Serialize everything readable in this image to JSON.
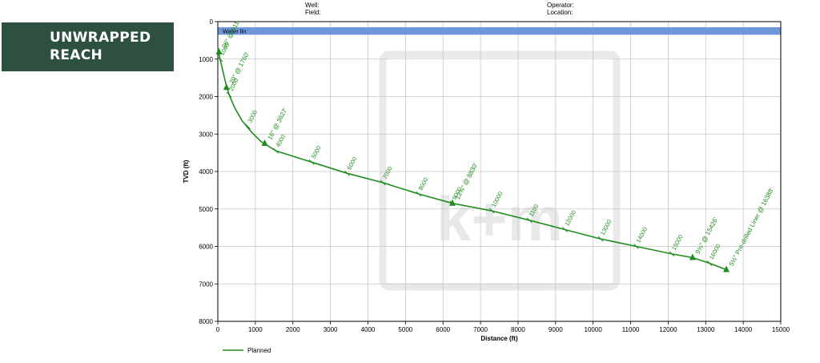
{
  "banner": {
    "line1": "UNWRAPPED",
    "line2": "REACH"
  },
  "header": {
    "well": "Well:",
    "field": "Field:",
    "operator": "Operator:",
    "location": "Location:"
  },
  "colors": {
    "trajectory": "#1e8c1e",
    "water": "#6f96d9",
    "banner_bg": "#2d5040",
    "grid": "#c8c8c8"
  },
  "chart_data": {
    "type": "line",
    "title": "",
    "xlabel": "Distance (ft)",
    "ylabel": "TVD (ft)",
    "xlim": [
      0,
      15000
    ],
    "ylim": [
      0,
      8000
    ],
    "y_inverted": true,
    "grid": true,
    "xticks": [
      0,
      1000,
      2000,
      3000,
      4000,
      5000,
      6000,
      7000,
      8000,
      9000,
      10000,
      11000,
      12000,
      13000,
      14000,
      15000
    ],
    "yticks": [
      0,
      1000,
      2000,
      3000,
      4000,
      5000,
      6000,
      7000,
      8000
    ],
    "xtick_labels": [
      "0",
      "1000",
      "2000",
      "3000",
      "4000",
      "5000",
      "6000",
      "7000",
      "8000",
      "9000",
      "10000",
      "11000",
      "12000",
      "13000",
      "14000",
      "15000"
    ],
    "ytick_labels": [
      "0",
      "1000",
      "2000",
      "3000",
      "4000",
      "5000",
      "6000",
      "7000",
      "8000"
    ],
    "water_line": {
      "label": "Water lin",
      "depth_top": 150,
      "depth_bottom": 350
    },
    "series": [
      {
        "name": "Planned",
        "x": [
          0,
          60,
          130,
          200,
          300,
          450,
          650,
          900,
          1150,
          1550,
          2500,
          3450,
          4400,
          5350,
          6250,
          7300,
          8300,
          9250,
          10200,
          11150,
          12100,
          12650,
          13100,
          13550
        ],
        "y": [
          700,
          1000,
          1300,
          1600,
          1950,
          2300,
          2650,
          2950,
          3200,
          3450,
          3750,
          4050,
          4300,
          4600,
          4850,
          5050,
          5300,
          5550,
          5800,
          6000,
          6200,
          6300,
          6450,
          6620
        ]
      }
    ],
    "md_marks": [
      {
        "label": "1000",
        "x": 60,
        "y": 1000
      },
      {
        "label": "2000",
        "x": 300,
        "y": 1950
      },
      {
        "label": "3000",
        "x": 800,
        "y": 2800
      },
      {
        "label": "4000",
        "x": 1550,
        "y": 3450
      },
      {
        "label": "5000",
        "x": 2500,
        "y": 3750
      },
      {
        "label": "6000",
        "x": 3450,
        "y": 4050
      },
      {
        "label": "7000",
        "x": 4400,
        "y": 4300
      },
      {
        "label": "8000",
        "x": 5350,
        "y": 4600
      },
      {
        "label": "9000",
        "x": 6250,
        "y": 4850
      },
      {
        "label": "10000",
        "x": 7300,
        "y": 5050
      },
      {
        "label": "1100",
        "x": 8300,
        "y": 5300
      },
      {
        "label": "12000",
        "x": 9250,
        "y": 5550
      },
      {
        "label": "13000",
        "x": 10200,
        "y": 5800
      },
      {
        "label": "14000",
        "x": 11150,
        "y": 6000
      },
      {
        "label": "15000",
        "x": 12100,
        "y": 6200
      },
      {
        "label": "16000",
        "x": 13100,
        "y": 6450
      }
    ],
    "casing_points": [
      {
        "label": "26\" @ 811",
        "x": 30,
        "y": 811
      },
      {
        "label": "20\" @ 1760'",
        "x": 230,
        "y": 1760
      },
      {
        "label": "16\" @ 3627'",
        "x": 1250,
        "y": 3250
      },
      {
        "label": "13⅝\" @ 8830'",
        "x": 6250,
        "y": 4850
      },
      {
        "label": "9⅝\" @ 15426'",
        "x": 12650,
        "y": 6300
      },
      {
        "label": "5½\" Pre-drilled Liner @ 16388'",
        "x": 13550,
        "y": 6620
      }
    ],
    "legend": {
      "position": "bottom-left",
      "entries": [
        "Planned"
      ]
    }
  }
}
